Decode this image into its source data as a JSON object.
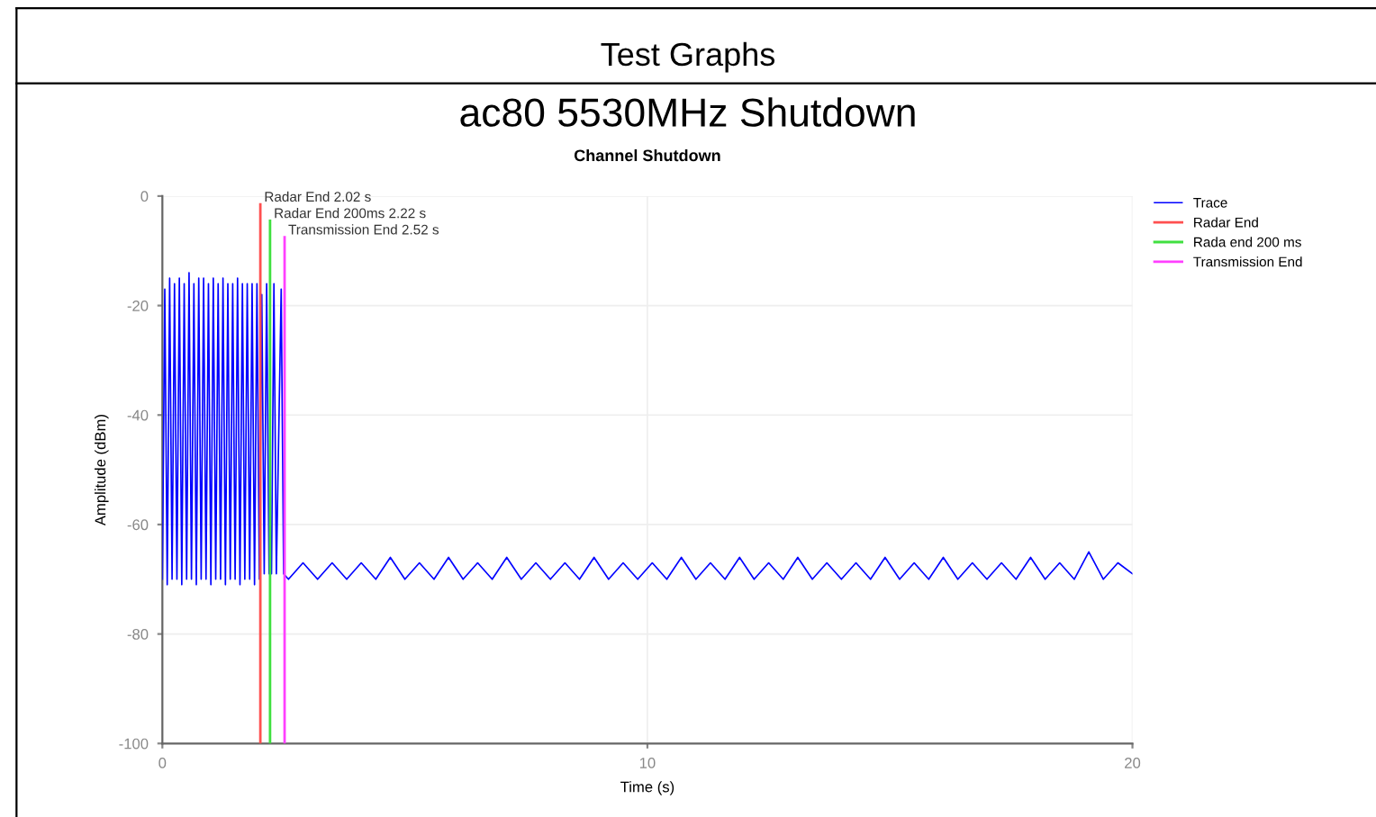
{
  "chart_data": {
    "type": "line",
    "title": "Channel Shutdown",
    "xlabel": "Time (s)",
    "ylabel": "Amplitude (dBm)",
    "annotations": [
      "Test Graphs",
      "ac80 5530MHz Shutdown",
      {
        "text": "Radar End 2.02 s",
        "x": 2.02,
        "y": -1.5
      },
      {
        "text": "Radar End 200ms 2.22 s",
        "x": 2.22,
        "y": -4.5
      },
      {
        "text": "Transmission End 2.52 s",
        "x": 2.52,
        "y": -7.5
      }
    ],
    "series": [
      {
        "name": "Trace",
        "color": "#0000ff",
        "x": [
          0,
          0.05,
          0.1,
          0.15,
          0.2,
          0.25,
          0.3,
          0.35,
          0.4,
          0.45,
          0.5,
          0.55,
          0.6,
          0.65,
          0.7,
          0.75,
          0.8,
          0.85,
          0.9,
          0.95,
          1.0,
          1.05,
          1.1,
          1.15,
          1.2,
          1.25,
          1.3,
          1.35,
          1.4,
          1.45,
          1.5,
          1.55,
          1.6,
          1.65,
          1.7,
          1.75,
          1.8,
          1.85,
          1.9,
          1.95,
          2.0,
          2.05,
          2.1,
          2.15,
          2.2,
          2.25,
          2.3,
          2.35,
          2.45,
          2.5,
          2.6,
          2.9,
          3.2,
          3.5,
          3.8,
          4.1,
          4.4,
          4.7,
          5.0,
          5.3,
          5.6,
          5.9,
          6.2,
          6.5,
          6.8,
          7.1,
          7.4,
          7.7,
          8.0,
          8.3,
          8.6,
          8.9,
          9.2,
          9.5,
          9.8,
          10.1,
          10.4,
          10.7,
          11.0,
          11.3,
          11.6,
          11.9,
          12.2,
          12.5,
          12.8,
          13.1,
          13.4,
          13.7,
          14.0,
          14.3,
          14.6,
          14.9,
          15.2,
          15.5,
          15.8,
          16.1,
          16.4,
          16.7,
          17.0,
          17.3,
          17.6,
          17.9,
          18.2,
          18.5,
          18.8,
          19.1,
          19.4,
          19.7,
          20.0
        ],
        "values": [
          -70,
          -17,
          -71,
          -15,
          -70,
          -16,
          -70,
          -15,
          -71,
          -16,
          -70,
          -14,
          -70,
          -16,
          -71,
          -15,
          -70,
          -15,
          -70,
          -16,
          -71,
          -15,
          -70,
          -16,
          -70,
          -15,
          -71,
          -16,
          -70,
          -16,
          -70,
          -15,
          -71,
          -16,
          -70,
          -16,
          -70,
          -16,
          -71,
          -16,
          -70,
          -18,
          -69,
          -16,
          -69,
          -69,
          -16,
          -69,
          -17,
          -69,
          -70,
          -67,
          -70,
          -67,
          -70,
          -67,
          -70,
          -66,
          -70,
          -67,
          -70,
          -66,
          -70,
          -67,
          -70,
          -66,
          -70,
          -67,
          -70,
          -67,
          -70,
          -66,
          -70,
          -67,
          -70,
          -67,
          -70,
          -66,
          -70,
          -67,
          -70,
          -66,
          -70,
          -67,
          -70,
          -66,
          -70,
          -67,
          -70,
          -67,
          -70,
          -66,
          -70,
          -67,
          -70,
          -66,
          -70,
          -67,
          -70,
          -67,
          -70,
          -66,
          -70,
          -67,
          -70,
          -65,
          -70,
          -67,
          -69
        ]
      },
      {
        "name": "Radar End",
        "color": "#ff5050",
        "x": [
          2.02,
          2.02
        ],
        "values": [
          -100,
          -1.5
        ]
      },
      {
        "name": "Rada end 200 ms",
        "color": "#40e040",
        "x": [
          2.22,
          2.22
        ],
        "values": [
          -100,
          -4.5
        ]
      },
      {
        "name": "Transmission End",
        "color": "#ff40ff",
        "x": [
          2.52,
          2.52
        ],
        "values": [
          -100,
          -7.5
        ]
      }
    ],
    "xlim": [
      0,
      20
    ],
    "xticks": [
      0,
      10,
      20
    ],
    "ylim": [
      -100,
      0
    ],
    "yticks": [
      0,
      -20,
      -40,
      -60,
      -80,
      -100
    ],
    "grid": true,
    "legend": "top right",
    "line_style": "solid"
  }
}
